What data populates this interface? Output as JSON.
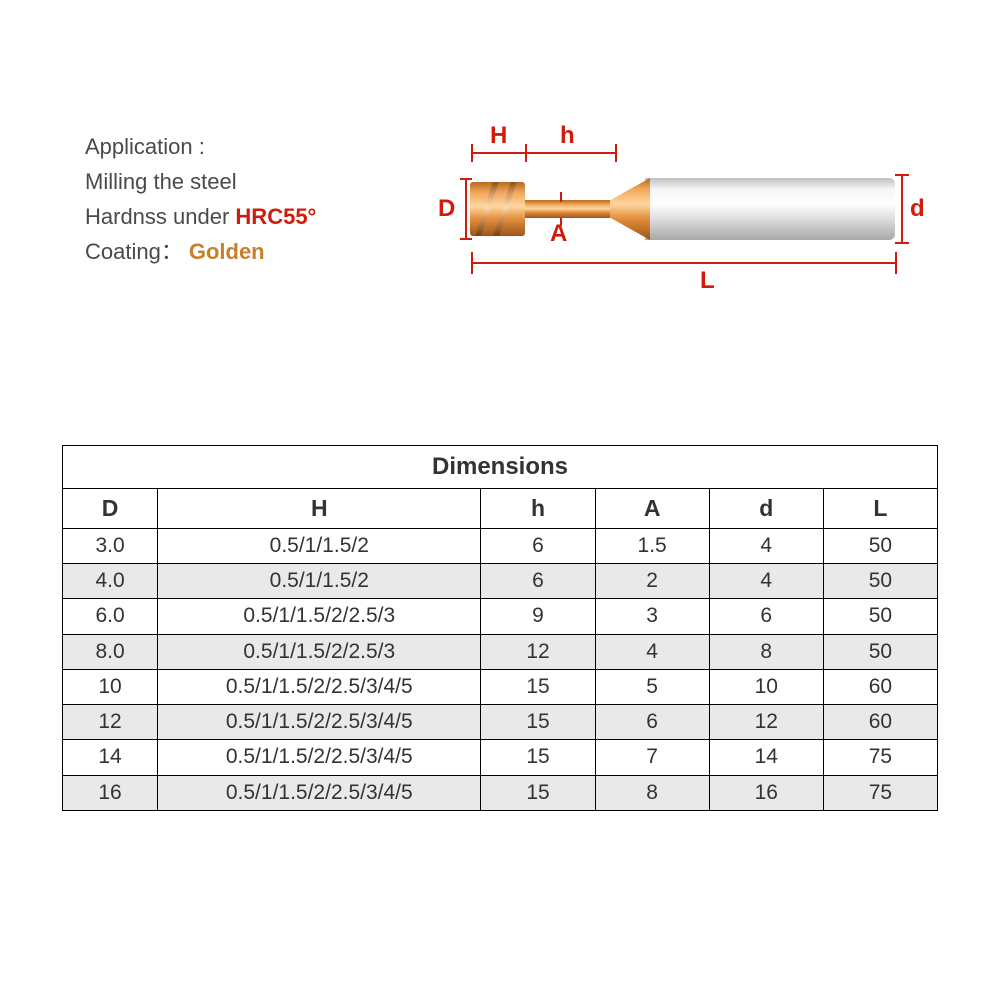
{
  "info": {
    "application_label": "Application :",
    "line1": "Milling the steel",
    "line2_prefix": "Hardnss under ",
    "hrc": "HRC55°",
    "coating_label": "Coating：",
    "coating_value": "Golden"
  },
  "diagram": {
    "labels": {
      "D": "D",
      "H": "H",
      "h": "h",
      "A": "A",
      "d": "d",
      "L": "L"
    },
    "colors": {
      "label": "#d11b0c",
      "coating_gold_mid": "#f2a85c",
      "coating_gold_dark": "#9c5418",
      "shank_light": "#f5f5f5",
      "shank_dark": "#a8a8a8",
      "line": "#d11b0c"
    }
  },
  "table": {
    "title": "Dimensions",
    "columns": [
      "D",
      "H",
      "h",
      "A",
      "d",
      "L"
    ],
    "column_widths_pct": [
      10,
      34,
      12,
      12,
      12,
      12
    ],
    "rows": [
      [
        "3.0",
        "0.5/1/1.5/2",
        "6",
        "1.5",
        "4",
        "50"
      ],
      [
        "4.0",
        "0.5/1/1.5/2",
        "6",
        "2",
        "4",
        "50"
      ],
      [
        "6.0",
        "0.5/1/1.5/2/2.5/3",
        "9",
        "3",
        "6",
        "50"
      ],
      [
        "8.0",
        "0.5/1/1.5/2/2.5/3",
        "12",
        "4",
        "8",
        "50"
      ],
      [
        "10",
        "0.5/1/1.5/2/2.5/3/4/5",
        "15",
        "5",
        "10",
        "60"
      ],
      [
        "12",
        "0.5/1/1.5/2/2.5/3/4/5",
        "15",
        "6",
        "12",
        "60"
      ],
      [
        "14",
        "0.5/1/1.5/2/2.5/3/4/5",
        "15",
        "7",
        "14",
        "75"
      ],
      [
        "16",
        "0.5/1/1.5/2/2.5/3/4/5",
        "15",
        "8",
        "16",
        "75"
      ]
    ],
    "style": {
      "border_color": "#000000",
      "stripe_bg": "#e9e9e9",
      "header_fontsize_pt": 17,
      "cell_fontsize_pt": 16
    }
  }
}
